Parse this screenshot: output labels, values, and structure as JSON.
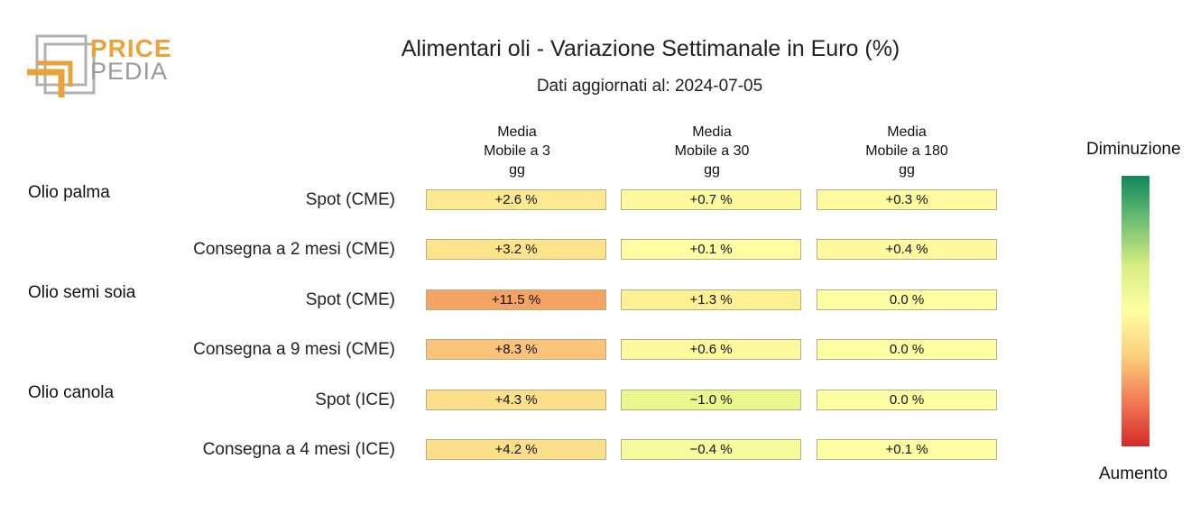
{
  "logo": {
    "word1": "PRICE",
    "word2": "PEDIA",
    "color_orange": "#e8a33a",
    "color_gray": "#9a9a9a"
  },
  "chart_data": {
    "type": "table",
    "title": "Alimentari oli - Variazione Settimanale in Euro (%)",
    "subtitle": "Dati aggiornati al: 2024-07-05",
    "columns": [
      "Media\nMobile a 3\ngg",
      "Media\nMobile a 30\ngg",
      "Media\nMobile a 180\ngg"
    ],
    "rows": [
      {
        "group": "Olio palma",
        "label": "Spot (CME)",
        "values": [
          2.6,
          0.7,
          0.3
        ],
        "display": [
          "+2.6 %",
          "+0.7 %",
          "+0.3 %"
        ]
      },
      {
        "group": "",
        "label": "Consegna a 2 mesi (CME)",
        "values": [
          3.2,
          0.1,
          0.4
        ],
        "display": [
          "+3.2 %",
          "+0.1 %",
          "+0.4 %"
        ]
      },
      {
        "group": "Olio semi soia",
        "label": "Spot (CME)",
        "values": [
          11.5,
          1.3,
          0.0
        ],
        "display": [
          "+11.5 %",
          "+1.3 %",
          "0.0 %"
        ]
      },
      {
        "group": "",
        "label": "Consegna a 9 mesi (CME)",
        "values": [
          8.3,
          0.6,
          0.0
        ],
        "display": [
          "+8.3 %",
          "+0.6 %",
          "0.0 %"
        ]
      },
      {
        "group": "Olio canola",
        "label": "Spot (ICE)",
        "values": [
          4.3,
          -1.0,
          0.0
        ],
        "display": [
          "+4.3 %",
          "−1.0 %",
          "0.0 %"
        ]
      },
      {
        "group": "",
        "label": "Consegna a 4 mesi (ICE)",
        "values": [
          4.2,
          -0.4,
          0.1
        ],
        "display": [
          "+4.2 %",
          "−0.4 %",
          "+0.1 %"
        ]
      }
    ],
    "cell_colors": [
      [
        "#fde98f",
        "#fdf99d",
        "#fdfa9f"
      ],
      [
        "#fde48b",
        "#fefda3",
        "#fef99e"
      ],
      [
        "#f4a364",
        "#fdf193",
        "#fefea3"
      ],
      [
        "#fcc37a",
        "#fdf99d",
        "#fefea3"
      ],
      [
        "#fdde89",
        "#e8f78e",
        "#fefea3"
      ],
      [
        "#fdde89",
        "#f6fc9c",
        "#fefda2"
      ]
    ],
    "legend": {
      "top_label": "Diminuzione",
      "bottom_label": "Aumento",
      "colors": [
        "#10875a",
        "#6fbf74",
        "#d9ee85",
        "#fefea3",
        "#fbcf7c",
        "#f47a55",
        "#d42a2a"
      ]
    }
  }
}
